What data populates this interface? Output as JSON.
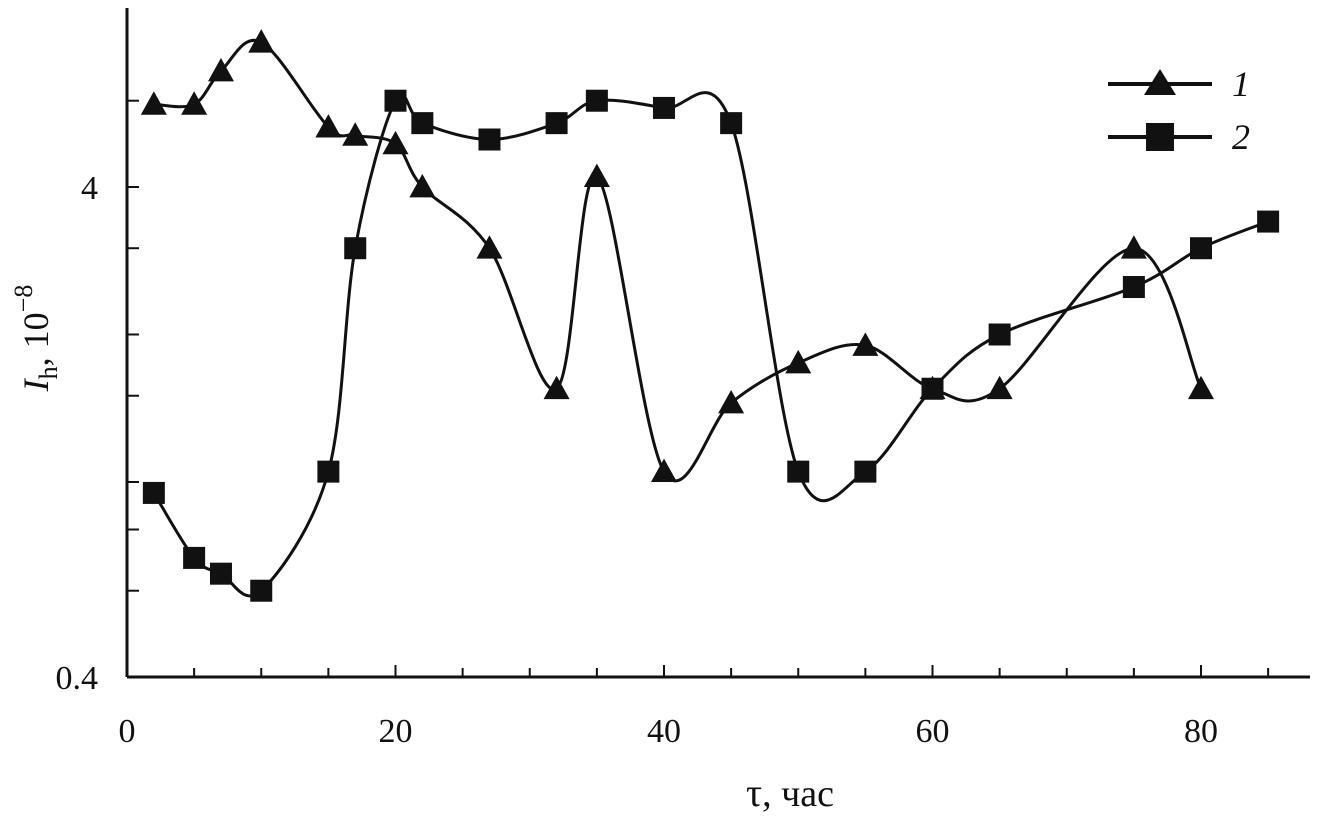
{
  "chart_data": {
    "type": "line",
    "xlabel_symbol": "τ",
    "xlabel_unit": ", час",
    "ylabel_symbol": "I",
    "ylabel_subscript": "h",
    "ylabel_unit": ", 10",
    "ylabel_exponent": "−8",
    "xlim": [
      0,
      88
    ],
    "ylim": [
      0.4,
      8
    ],
    "yscale": "log",
    "x_ticks": [
      0,
      20,
      40,
      60,
      80
    ],
    "x_tick_labels": [
      "0",
      "20",
      "40",
      "60",
      "80"
    ],
    "y_tick_labels": [
      {
        "value": 4,
        "label": "4"
      },
      {
        "value": 0.4,
        "label": "0.4"
      }
    ],
    "grid": false,
    "legend_position": "top-right",
    "series": [
      {
        "name": "1",
        "marker": "triangle",
        "x": [
          2,
          5,
          7,
          10,
          15,
          17,
          20,
          22,
          27,
          32,
          35,
          40,
          45,
          50,
          55,
          60,
          65,
          75,
          80
        ],
        "y": [
          5.9,
          5.9,
          6.9,
          7.9,
          5.3,
          5.1,
          4.9,
          4.0,
          3.0,
          1.55,
          4.2,
          1.05,
          1.45,
          1.75,
          1.9,
          1.55,
          1.55,
          3.0,
          1.55
        ]
      },
      {
        "name": "2",
        "marker": "square",
        "x": [
          2,
          5,
          7,
          10,
          15,
          17,
          20,
          22,
          27,
          32,
          35,
          40,
          45,
          50,
          55,
          60,
          65,
          75,
          80,
          85
        ],
        "y": [
          0.95,
          0.7,
          0.65,
          0.6,
          1.05,
          3.0,
          6.0,
          5.4,
          5.0,
          5.4,
          6.0,
          5.8,
          5.4,
          1.05,
          1.05,
          1.55,
          2.0,
          2.5,
          3.0,
          3.4
        ]
      }
    ]
  }
}
